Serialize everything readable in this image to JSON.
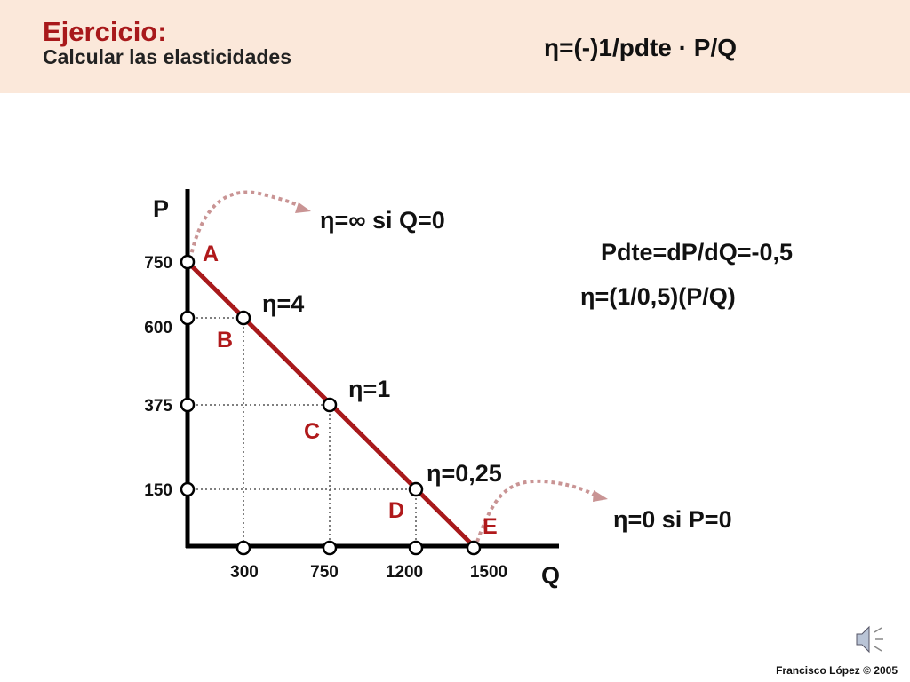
{
  "header": {
    "title": "Ejercicio:",
    "subtitle": "Calcular las elasticidades",
    "formula": "η=(-)1/pdte · P/Q"
  },
  "diagram": {
    "axis_labels": {
      "p": "P",
      "q": "Q"
    },
    "y_ticks": [
      "750",
      "600",
      "375",
      "150"
    ],
    "x_ticks": [
      "300",
      "750",
      "1200",
      "1500"
    ],
    "points": [
      "A",
      "B",
      "C",
      "D",
      "E"
    ],
    "elasticities": [
      "η=4",
      "η=1",
      "η=0,25"
    ],
    "notes": {
      "infinite": "η=∞ si Q=0",
      "slope": "Pdte=dP/dQ=-0,5",
      "formula": "η=(1/0,5)(P/Q)",
      "zero": "η=0 si P=0"
    }
  },
  "footer": "Francisco López © 2005"
}
